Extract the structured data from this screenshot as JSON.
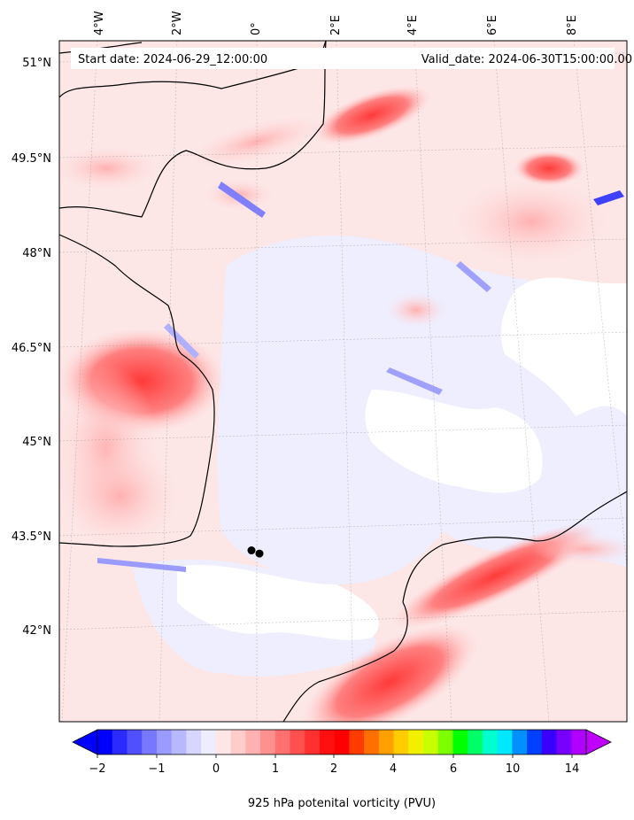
{
  "header": {
    "start_date": "Start date: 2024-06-29_12:00:00",
    "valid_date": "Valid_date: 2024-06-30T15:00:00.00"
  },
  "map": {
    "lon_labels": [
      "4°W",
      "2°W",
      "0°",
      "2°E",
      "4°E",
      "6°E",
      "8°E"
    ],
    "lat_labels": [
      "51°N",
      "49.5°N",
      "48°N",
      "46.5°N",
      "45°N",
      "43.5°N",
      "42°N"
    ],
    "field": "925 hPa potential vorticity"
  },
  "colorbar": {
    "label": "925 hPa potenital vorticity (PVU)",
    "tick_labels": [
      "−2",
      "−1",
      "0",
      "1",
      "2",
      "4",
      "6",
      "10",
      "14"
    ],
    "colors": [
      "#0000ff",
      "#2b2bff",
      "#5050ff",
      "#7878ff",
      "#9a9aff",
      "#b8b8ff",
      "#d6d6ff",
      "#ededff",
      "#ffe6e6",
      "#ffcccc",
      "#ffb0b0",
      "#ff9090",
      "#ff7070",
      "#ff5050",
      "#ff3030",
      "#ff1010",
      "#ff0000",
      "#ff3c00",
      "#ff7000",
      "#ffa000",
      "#ffcc00",
      "#f0f000",
      "#c8ff00",
      "#7cff00",
      "#00ff00",
      "#00ff66",
      "#00ffcc",
      "#00e8ff",
      "#0090ff",
      "#0040ff",
      "#3a00ff",
      "#7800ff",
      "#b000ff"
    ]
  },
  "cities": [
    {
      "name": "",
      "lon": -0.2,
      "lat": 43.35
    },
    {
      "name": "",
      "lon": 0.0,
      "lat": 43.3
    }
  ]
}
